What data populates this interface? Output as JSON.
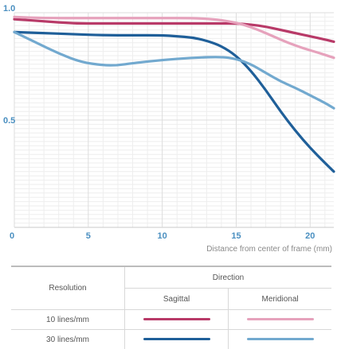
{
  "chart_data": {
    "type": "line",
    "title": "",
    "xlabel": "Distance from center of frame (mm)",
    "ylabel": "",
    "xlim": [
      0,
      21.6
    ],
    "ylim": [
      0,
      1.0
    ],
    "x_ticks": [
      "0",
      "5",
      "10",
      "15",
      "20"
    ],
    "y_ticks": [
      "1.0",
      "0.5"
    ],
    "grid": "horizontal and vertical",
    "series": [
      {
        "resolution": "10 lines/mm",
        "direction": "Sagittal",
        "color": "#b83a68",
        "x": [
          0,
          2,
          4,
          6,
          8,
          10,
          12,
          14,
          15,
          16,
          17,
          18,
          19,
          20,
          21,
          21.6
        ],
        "y": [
          0.97,
          0.96,
          0.95,
          0.95,
          0.95,
          0.95,
          0.95,
          0.95,
          0.95,
          0.945,
          0.935,
          0.92,
          0.905,
          0.89,
          0.875,
          0.865
        ]
      },
      {
        "resolution": "10 lines/mm",
        "direction": "Meridional",
        "color": "#e6a2bc",
        "x": [
          0,
          2,
          4,
          6,
          8,
          10,
          12,
          13.5,
          14.5,
          15.5,
          16.5,
          17.5,
          18.5,
          19.5,
          20.5,
          21.6
        ],
        "y": [
          0.98,
          0.975,
          0.975,
          0.975,
          0.975,
          0.975,
          0.975,
          0.97,
          0.96,
          0.945,
          0.92,
          0.89,
          0.86,
          0.835,
          0.815,
          0.79
        ]
      },
      {
        "resolution": "30 lines/mm",
        "direction": "Sagittal",
        "color": "#1f5f99",
        "x": [
          0,
          2,
          4,
          6,
          8,
          10,
          11,
          12,
          13,
          14,
          15,
          16,
          17,
          18,
          19,
          20,
          21,
          21.6
        ],
        "y": [
          0.91,
          0.905,
          0.9,
          0.895,
          0.895,
          0.895,
          0.89,
          0.885,
          0.87,
          0.845,
          0.8,
          0.73,
          0.64,
          0.54,
          0.45,
          0.37,
          0.3,
          0.26
        ]
      },
      {
        "resolution": "30 lines/mm",
        "direction": "Meridional",
        "color": "#72a9cf",
        "x": [
          0,
          1.5,
          3,
          4.5,
          6,
          7,
          8,
          10,
          12,
          14,
          15,
          16,
          17,
          18,
          19,
          20,
          21,
          21.6
        ],
        "y": [
          0.91,
          0.86,
          0.81,
          0.77,
          0.755,
          0.755,
          0.765,
          0.78,
          0.79,
          0.795,
          0.785,
          0.76,
          0.72,
          0.68,
          0.65,
          0.615,
          0.58,
          0.555
        ]
      }
    ]
  },
  "legend": {
    "resolution_header": "Resolution",
    "direction_header": "Direction",
    "col_sagittal": "Sagittal",
    "col_meridional": "Meridional",
    "rows": [
      {
        "label": "10 lines/mm",
        "sagittal_color": "#b83a68",
        "meridional_color": "#e6a2bc"
      },
      {
        "label": "30 lines/mm",
        "sagittal_color": "#1f5f99",
        "meridional_color": "#72a9cf"
      }
    ]
  }
}
